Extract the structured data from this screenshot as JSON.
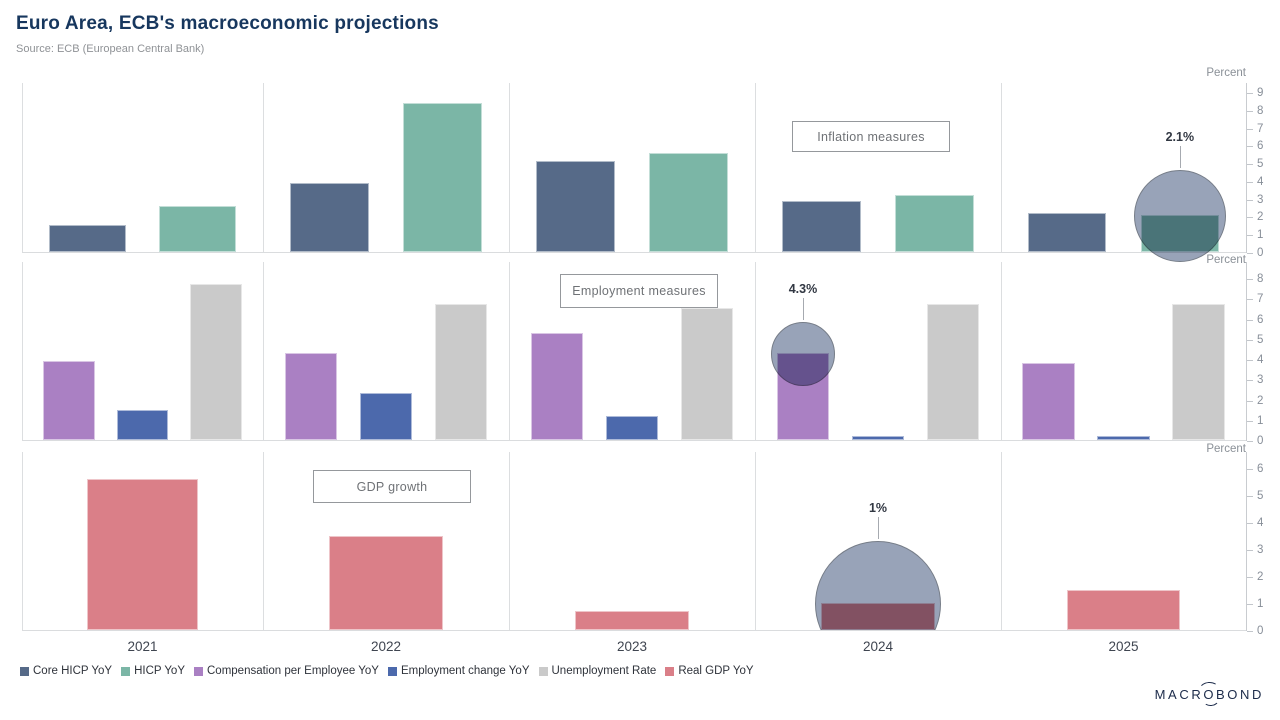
{
  "header": {
    "title": "Euro Area, ECB's macroeconomic projections",
    "source": "Source: ECB (European Central Bank)"
  },
  "chart_data": {
    "type": "bar",
    "categories": [
      "2021",
      "2022",
      "2023",
      "2024",
      "2025"
    ],
    "axis_unit_label": "Percent",
    "axis_position": "right",
    "grid": false,
    "circle_color": "#98A3B8",
    "panels": [
      {
        "name": "inflation",
        "caption": "Inflation measures",
        "ylim": [
          0,
          9
        ],
        "tick_step": 1,
        "series": [
          {
            "name": "Core HICP YoY",
            "color": "#566A88",
            "values": [
              1.5,
              3.9,
              5.1,
              2.9,
              2.2
            ]
          },
          {
            "name": "HICP YoY",
            "color": "#7BB6A6",
            "values": [
              2.6,
              8.4,
              5.6,
              3.2,
              2.1
            ]
          }
        ],
        "annotation": {
          "label": "2.1%",
          "series": "HICP YoY",
          "category": "2025",
          "value": 2.1
        }
      },
      {
        "name": "employment",
        "caption": "Employment measures",
        "ylim": [
          0,
          8
        ],
        "tick_step": 1,
        "series": [
          {
            "name": "Compensation per Employee YoY",
            "color": "#AA80C3",
            "values": [
              3.9,
              4.3,
              5.3,
              4.3,
              3.8
            ]
          },
          {
            "name": "Employment change YoY",
            "color": "#4C69AC",
            "values": [
              1.5,
              2.3,
              1.2,
              0.2,
              0.2
            ]
          },
          {
            "name": "Unemployment Rate",
            "color": "#CACACA",
            "values": [
              7.7,
              6.7,
              6.5,
              6.7,
              6.7
            ]
          }
        ],
        "annotation": {
          "label": "4.3%",
          "series": "Compensation per Employee YoY",
          "category": "2024",
          "value": 4.3
        }
      },
      {
        "name": "gdp",
        "caption": "GDP growth",
        "ylim": [
          0,
          6
        ],
        "tick_step": 1,
        "series": [
          {
            "name": "Real GDP YoY",
            "color": "#DA7F88",
            "values": [
              5.6,
              3.5,
              0.7,
              1.0,
              1.5
            ]
          }
        ],
        "annotation": {
          "label": "1%",
          "series": "Real GDP YoY",
          "category": "2024",
          "value": 1.0
        }
      }
    ]
  },
  "logo": {
    "left": "MACR",
    "orbit": "O",
    "right": "BOND"
  }
}
